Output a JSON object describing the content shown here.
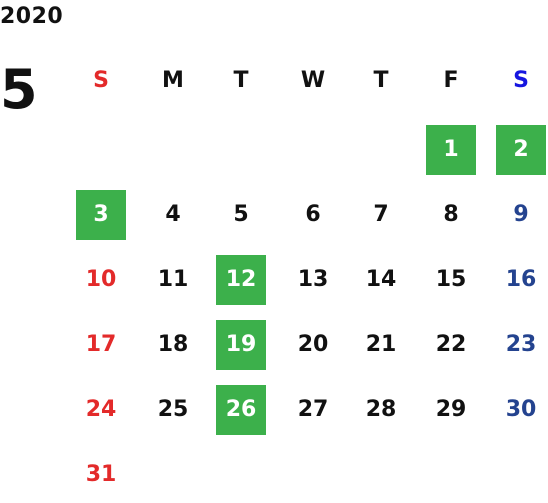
{
  "calendar": {
    "year": "2020",
    "month": "5",
    "colors": {
      "sunday": "#e32a2a",
      "saturday_header": "#1616e0",
      "saturday_dates": "#24438f",
      "weekday": "#111111",
      "highlight_bg": "#3cb04b",
      "highlight_text": "#ffffff"
    },
    "weekdays": [
      "S",
      "M",
      "T",
      "W",
      "T",
      "F",
      "S"
    ],
    "weeks": [
      [
        null,
        null,
        null,
        null,
        null,
        "1",
        "2"
      ],
      [
        "3",
        "4",
        "5",
        "6",
        "7",
        "8",
        "9"
      ],
      [
        "10",
        "11",
        "12",
        "13",
        "14",
        "15",
        "16"
      ],
      [
        "17",
        "18",
        "19",
        "20",
        "21",
        "22",
        "23"
      ],
      [
        "24",
        "25",
        "26",
        "27",
        "28",
        "29",
        "30"
      ],
      [
        "31",
        null,
        null,
        null,
        null,
        null,
        null
      ]
    ],
    "highlighted_dates": [
      "1",
      "2",
      "3",
      "12",
      "19",
      "26"
    ]
  }
}
